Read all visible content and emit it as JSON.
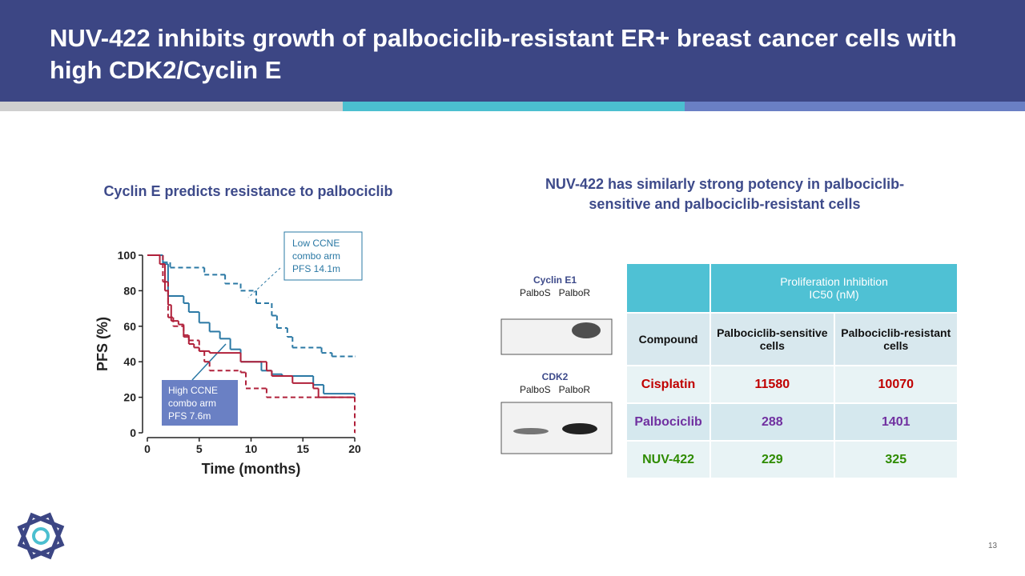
{
  "header": {
    "title": "NUV-422 inhibits growth of palbociclib-resistant ER+ breast cancer cells with high CDK2/Cyclin E"
  },
  "left_panel": {
    "heading": "Cyclin E predicts resistance to palbociclib"
  },
  "right_panel": {
    "heading": "NUV-422 has similarly strong potency in palbociclib-sensitive and palbociclib-resistant cells"
  },
  "chart_data": {
    "type": "step",
    "xlabel": "Time (months)",
    "ylabel": "PFS (%)",
    "xlim": [
      0,
      20
    ],
    "ylim": [
      0,
      100
    ],
    "xticks": [
      0,
      5,
      10,
      15,
      20
    ],
    "yticks": [
      0,
      20,
      40,
      60,
      80,
      100
    ],
    "series": [
      {
        "color": "#2a78a4",
        "dash": true,
        "x": [
          0,
          1.5,
          2.2,
          5.5,
          7.5,
          9,
          10.5,
          12,
          12.5,
          13.5,
          14,
          16.8,
          17.8,
          20
        ],
        "values": [
          100,
          96,
          93,
          89,
          84,
          80,
          73,
          66,
          59,
          54,
          48,
          45,
          43,
          43
        ]
      },
      {
        "color": "#2a78a4",
        "dash": false,
        "x": [
          0,
          1.5,
          2,
          3.5,
          4,
          5,
          6,
          7,
          8,
          9,
          10,
          11,
          12,
          13,
          16,
          17,
          20
        ],
        "values": [
          100,
          95,
          77,
          73,
          68,
          62,
          57,
          53,
          47,
          40,
          40,
          35,
          33,
          32,
          27,
          22,
          21
        ]
      },
      {
        "color": "#b0203a",
        "dash": false,
        "x": [
          0,
          1.2,
          1.7,
          2,
          2.3,
          3,
          3.5,
          4,
          4.5,
          5,
          6,
          9,
          11.5,
          12,
          14,
          16,
          16.5,
          20
        ],
        "values": [
          100,
          95,
          80,
          72,
          63,
          61,
          54,
          50,
          48,
          46,
          45,
          40,
          35,
          32,
          28,
          25,
          20,
          20
        ]
      },
      {
        "color": "#b0203a",
        "dash": true,
        "x": [
          0,
          1.5,
          2,
          2.5,
          3.5,
          4,
          5,
          5.5,
          6,
          9,
          9.5,
          11,
          11.5,
          20,
          20
        ],
        "values": [
          100,
          85,
          65,
          60,
          55,
          52,
          46,
          40,
          35,
          34,
          25,
          25,
          20,
          20,
          0
        ]
      }
    ],
    "annotations": [
      {
        "lines": [
          "Low CCNE",
          "combo arm",
          "PFS 14.1m"
        ]
      },
      {
        "lines": [
          "High CCNE",
          "combo arm",
          "PFS 7.6m"
        ]
      }
    ]
  },
  "blots": [
    {
      "label": "Cyclin E1",
      "lanes": [
        "PalboS",
        "PalboR"
      ]
    },
    {
      "label": "CDK2",
      "lanes": [
        "PalboS",
        "PalboR"
      ]
    }
  ],
  "table": {
    "group_header": "Proliferation Inhibition",
    "group_subheader": "IC50 (nM)",
    "columns": [
      "Compound",
      "Palbociclib-sensitive cells",
      "Palbociclib-resistant cells"
    ],
    "rows": [
      [
        "Cisplatin",
        11580,
        10070
      ],
      [
        "Palbociclib",
        288,
        1401
      ],
      [
        "NUV-422",
        229,
        325
      ]
    ]
  },
  "footer": {
    "page_number": 13
  }
}
